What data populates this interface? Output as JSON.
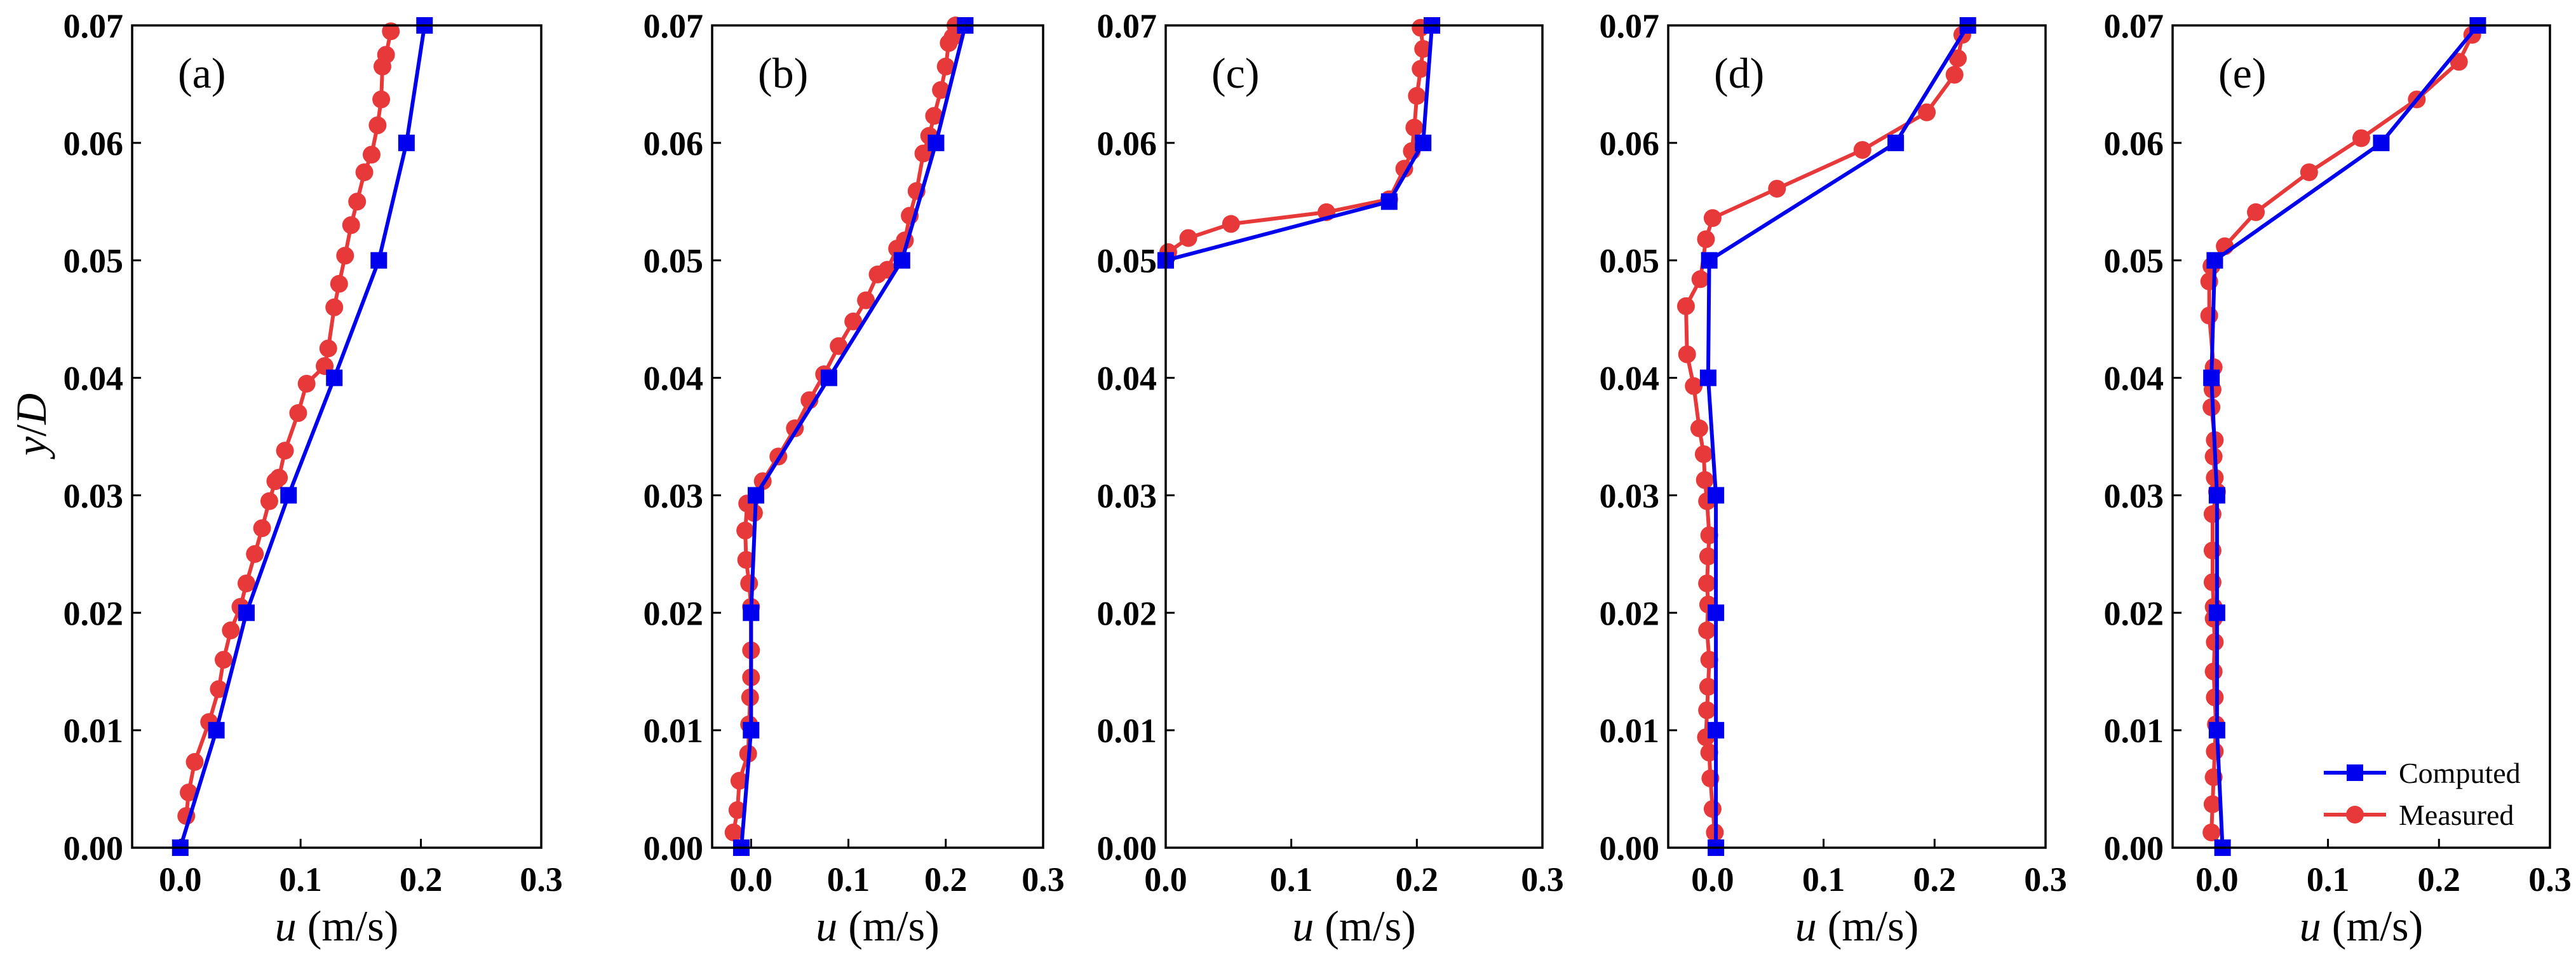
{
  "colors": {
    "computed": "#0000ee",
    "measured": "#e8393a",
    "axis": "#000000"
  },
  "legend": {
    "computed_label": "Computed",
    "measured_label": "Measured",
    "placement": "lower-right of panel (e)"
  },
  "ylabel": {
    "italic": "y",
    "rest": "/",
    "italic2": "D"
  },
  "xlabel": {
    "italic": "u",
    "rest": " (m/s)"
  },
  "chart_data": [
    {
      "type": "line",
      "panel": "(a)",
      "xlim": [
        -0.04,
        0.3
      ],
      "ylim": [
        0,
        0.07
      ],
      "xticks": [
        "0.0",
        "0.1",
        "0.2",
        "0.3"
      ],
      "yticks": [
        "0.00",
        "0.01",
        "0.02",
        "0.03",
        "0.04",
        "0.05",
        "0.06",
        "0.07"
      ],
      "series": [
        {
          "name": "Computed",
          "x": [
            0.0,
            0.03,
            0.055,
            0.09,
            0.128,
            0.165,
            0.188,
            0.203
          ],
          "y": [
            0.0,
            0.01,
            0.02,
            0.03,
            0.04,
            0.05,
            0.06,
            0.07
          ]
        },
        {
          "name": "Measured",
          "x": [
            0.005,
            0.007,
            0.012,
            0.024,
            0.032,
            0.036,
            0.042,
            0.05,
            0.055,
            0.062,
            0.068,
            0.074,
            0.079,
            0.082,
            0.087,
            0.098,
            0.105,
            0.12,
            0.123,
            0.128,
            0.132,
            0.137,
            0.142,
            0.147,
            0.153,
            0.159,
            0.164,
            0.167,
            0.168,
            0.171,
            0.175
          ],
          "y": [
            0.0027,
            0.0047,
            0.0073,
            0.0107,
            0.0135,
            0.016,
            0.0185,
            0.0205,
            0.0225,
            0.025,
            0.0272,
            0.0295,
            0.0312,
            0.0315,
            0.0338,
            0.037,
            0.0395,
            0.041,
            0.0425,
            0.046,
            0.048,
            0.0504,
            0.053,
            0.055,
            0.0575,
            0.059,
            0.0615,
            0.0637,
            0.0665,
            0.0675,
            0.0695
          ]
        }
      ]
    },
    {
      "type": "line",
      "panel": "(b)",
      "xlim": [
        -0.04,
        0.3
      ],
      "ylim": [
        0,
        0.07
      ],
      "xticks": [
        "0.0",
        "0.1",
        "0.2",
        "0.3"
      ],
      "yticks": [
        "0.00",
        "0.01",
        "0.02",
        "0.03",
        "0.04",
        "0.05",
        "0.06",
        "0.07"
      ],
      "series": [
        {
          "name": "Computed",
          "x": [
            -0.01,
            0.0,
            0.0,
            0.005,
            0.08,
            0.155,
            0.19,
            0.22
          ],
          "y": [
            0.0,
            0.01,
            0.02,
            0.03,
            0.04,
            0.05,
            0.06,
            0.07
          ]
        },
        {
          "name": "Measured",
          "x": [
            -0.018,
            -0.014,
            -0.012,
            -0.003,
            -0.002,
            -0.001,
            0.0,
            0.0,
            0.0,
            -0.002,
            -0.005,
            -0.006,
            -0.004,
            0.003,
            0.012,
            0.028,
            0.045,
            0.06,
            0.075,
            0.09,
            0.105,
            0.118,
            0.13,
            0.14,
            0.15,
            0.158,
            0.163,
            0.17,
            0.177,
            0.183,
            0.188,
            0.195,
            0.2,
            0.203,
            0.207,
            0.21
          ],
          "y": [
            0.0013,
            0.0032,
            0.0057,
            0.008,
            0.0105,
            0.0128,
            0.0145,
            0.0168,
            0.0205,
            0.0225,
            0.0245,
            0.027,
            0.0293,
            0.0285,
            0.0312,
            0.0333,
            0.0357,
            0.0381,
            0.0403,
            0.0427,
            0.0448,
            0.0466,
            0.0488,
            0.0492,
            0.051,
            0.0517,
            0.0538,
            0.0559,
            0.0591,
            0.0606,
            0.0623,
            0.0645,
            0.0665,
            0.0685,
            0.069,
            0.07
          ]
        }
      ]
    },
    {
      "type": "line",
      "panel": "(c)",
      "xlim": [
        0.0,
        0.3
      ],
      "ylim": [
        0,
        0.07
      ],
      "xticks": [
        "0.0",
        "0.1",
        "0.2",
        "0.3"
      ],
      "yticks": [
        "0.00",
        "0.01",
        "0.02",
        "0.03",
        "0.04",
        "0.05",
        "0.06",
        "0.07"
      ],
      "series": [
        {
          "name": "Computed",
          "x": [
            0.0,
            0.178,
            0.205,
            0.212
          ],
          "y": [
            0.05,
            0.055,
            0.06,
            0.07
          ]
        },
        {
          "name": "Measured",
          "x": [
            0.002,
            0.018,
            0.052,
            0.128,
            0.178,
            0.19,
            0.196,
            0.198,
            0.2,
            0.203,
            0.205,
            0.203
          ],
          "y": [
            0.0507,
            0.0519,
            0.0531,
            0.0541,
            0.0552,
            0.0578,
            0.0593,
            0.0613,
            0.064,
            0.0663,
            0.068,
            0.0698
          ]
        }
      ]
    },
    {
      "type": "line",
      "panel": "(d)",
      "xlim": [
        -0.04,
        0.3
      ],
      "ylim": [
        0,
        0.07
      ],
      "xticks": [
        "0.0",
        "0.1",
        "0.2",
        "0.3"
      ],
      "yticks": [
        "0.00",
        "0.01",
        "0.02",
        "0.03",
        "0.04",
        "0.05",
        "0.06",
        "0.07"
      ],
      "series": [
        {
          "name": "Computed",
          "x": [
            0.003,
            0.003,
            0.003,
            0.003,
            -0.004,
            -0.003,
            0.165,
            0.23
          ],
          "y": [
            0.0,
            0.01,
            0.02,
            0.03,
            0.04,
            0.05,
            0.06,
            0.07
          ]
        },
        {
          "name": "Measured",
          "x": [
            0.002,
            0.0,
            -0.002,
            -0.003,
            -0.006,
            -0.005,
            -0.004,
            -0.003,
            -0.005,
            -0.004,
            -0.005,
            -0.004,
            -0.003,
            -0.005,
            -0.007,
            -0.008,
            -0.012,
            -0.017,
            -0.023,
            -0.024,
            -0.011,
            -0.006,
            0.0,
            0.058,
            0.135,
            0.193,
            0.218,
            0.221,
            0.225
          ],
          "y": [
            0.0013,
            0.0033,
            0.0059,
            0.0081,
            0.0094,
            0.0117,
            0.0137,
            0.016,
            0.0185,
            0.0207,
            0.0225,
            0.0248,
            0.0266,
            0.0295,
            0.0313,
            0.0335,
            0.0357,
            0.0393,
            0.042,
            0.0461,
            0.0484,
            0.0518,
            0.0536,
            0.0561,
            0.0594,
            0.0626,
            0.0658,
            0.0672,
            0.0692
          ]
        }
      ]
    },
    {
      "type": "line",
      "panel": "(e)",
      "xlim": [
        -0.04,
        0.3
      ],
      "ylim": [
        0,
        0.07
      ],
      "xticks": [
        "0.0",
        "0.1",
        "0.2",
        "0.3"
      ],
      "yticks": [
        "0.00",
        "0.01",
        "0.02",
        "0.03",
        "0.04",
        "0.05",
        "0.06",
        "0.07"
      ],
      "series": [
        {
          "name": "Computed",
          "x": [
            0.005,
            0.0,
            0.0,
            0.0,
            -0.005,
            -0.002,
            0.148,
            0.235
          ],
          "y": [
            0.0,
            0.01,
            0.02,
            0.03,
            0.04,
            0.05,
            0.06,
            0.07
          ]
        },
        {
          "name": "Measured",
          "x": [
            -0.005,
            -0.004,
            -0.003,
            -0.002,
            -0.001,
            -0.002,
            -0.003,
            -0.002,
            -0.003,
            -0.003,
            -0.004,
            -0.004,
            -0.004,
            0.0,
            -0.002,
            -0.003,
            -0.002,
            -0.005,
            -0.004,
            -0.003,
            -0.007,
            -0.007,
            -0.005,
            0.007,
            0.035,
            0.083,
            0.13,
            0.18,
            0.218,
            0.23
          ],
          "y": [
            0.0013,
            0.0037,
            0.006,
            0.0082,
            0.0105,
            0.0128,
            0.015,
            0.0175,
            0.0195,
            0.0205,
            0.0226,
            0.0253,
            0.0284,
            0.0303,
            0.0315,
            0.0333,
            0.0347,
            0.0375,
            0.039,
            0.0409,
            0.0453,
            0.0482,
            0.0495,
            0.0512,
            0.0541,
            0.0575,
            0.0604,
            0.0637,
            0.0669,
            0.0692
          ]
        }
      ]
    }
  ]
}
